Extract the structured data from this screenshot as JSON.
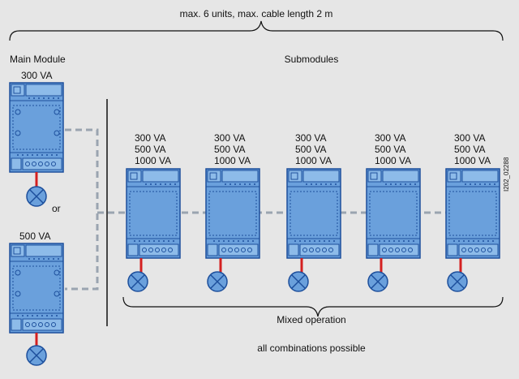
{
  "header": {
    "title": "max. 6 units, max. cable length 2 m"
  },
  "main_module": {
    "heading": "Main Module",
    "option_a_rating": "300 VA",
    "separator": "or",
    "option_b_rating": "500 VA"
  },
  "submodules": {
    "heading": "Submodules",
    "units": [
      {
        "ratings": [
          "300 VA",
          "500 VA",
          "1000 VA"
        ]
      },
      {
        "ratings": [
          "300 VA",
          "500 VA",
          "1000 VA"
        ]
      },
      {
        "ratings": [
          "300 VA",
          "500 VA",
          "1000 VA"
        ]
      },
      {
        "ratings": [
          "300 VA",
          "500 VA",
          "1000 VA"
        ]
      },
      {
        "ratings": [
          "300 VA",
          "500 VA",
          "1000 VA"
        ]
      }
    ]
  },
  "footer": {
    "mixed": "Mixed operation",
    "combinations": "all combinations possible"
  },
  "figure_id": "I202_02288",
  "colors": {
    "module_fill": "#6aa0dc",
    "module_stroke": "#1d4f9c",
    "cable_dash": "#9aa4b0",
    "lamp_stem": "#d42020",
    "background": "#e6e6e6"
  }
}
